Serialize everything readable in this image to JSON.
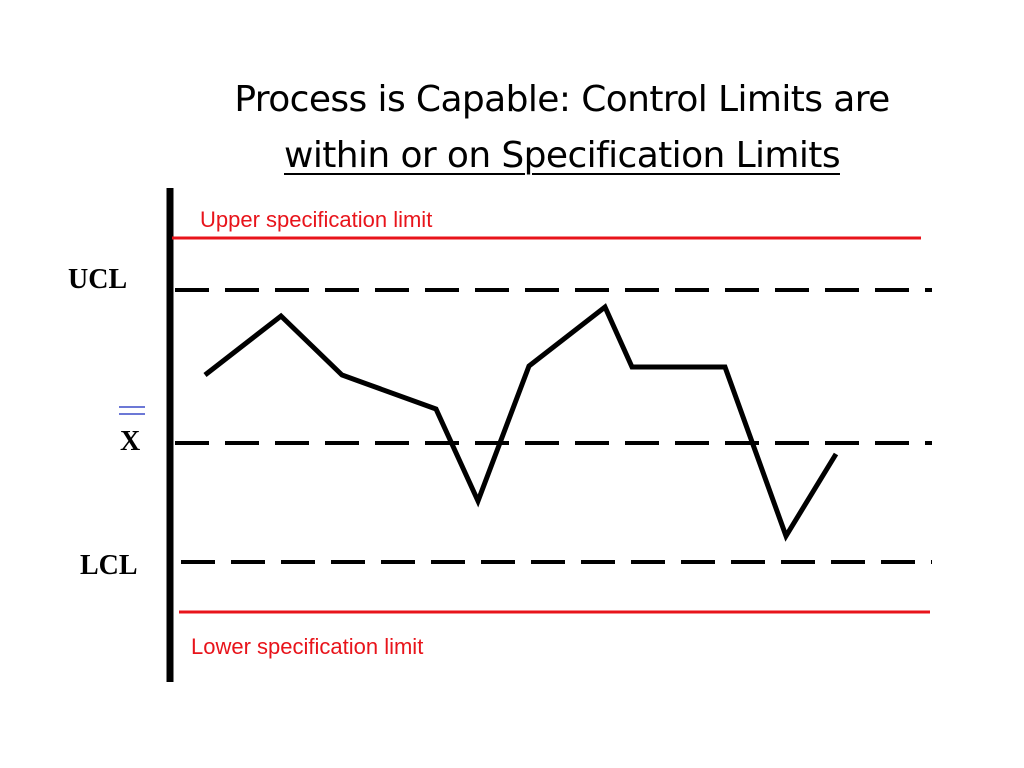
{
  "title": {
    "line1": "Process is Capable: Control Limits are",
    "line2": "within or on Specification Limits"
  },
  "labels": {
    "usl": "Upper specification limit",
    "lsl": "Lower specification limit",
    "ucl": "UCL",
    "xbar": "X",
    "lcl": "LCL"
  },
  "colors": {
    "spec_limit": "#e8141b",
    "control_limit": "#000000",
    "series": "#000000",
    "xbar_bars": "#3b4bc8"
  }
}
